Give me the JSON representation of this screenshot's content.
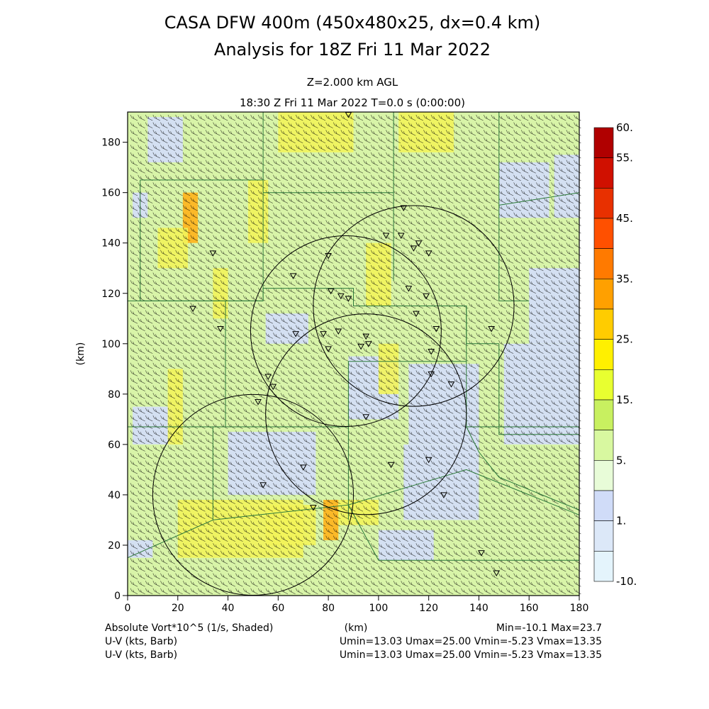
{
  "title": {
    "line1": "CASA DFW 400m (450x480x25, dx=0.4 km)",
    "line2": "Analysis for 18Z Fri 11 Mar 2022"
  },
  "subtitle": {
    "level": "Z=2.000 km AGL",
    "time": "18:30 Z Fri 11 Mar 2022    T=0.0 s (0:00:00)"
  },
  "axes": {
    "x_label": "(km)",
    "y_label": "(km)",
    "x_range": [
      0,
      180
    ],
    "y_range": [
      0,
      192
    ],
    "x_ticks": [
      "0",
      "20",
      "40",
      "60",
      "80",
      "100",
      "120",
      "140",
      "160",
      "180"
    ],
    "y_ticks": [
      "0",
      "20",
      "40",
      "60",
      "80",
      "100",
      "120",
      "140",
      "160",
      "180"
    ]
  },
  "colorbar": {
    "labels": [
      "60.",
      "55.",
      "45.",
      "35.",
      "25.",
      "15.",
      "5.",
      "1.",
      "-10."
    ],
    "colors": [
      "#b00000",
      "#d01000",
      "#e83000",
      "#ff5000",
      "#ff7a00",
      "#ffa000",
      "#ffcc00",
      "#fff000",
      "#e8ff30",
      "#c8f060",
      "#d8f8a0",
      "#e8fcd8",
      "#d0dcf8",
      "#dce8f8",
      "#e4f4fc"
    ]
  },
  "footer": {
    "field": "Absolute Vort*10^5 (1/s, Shaded)",
    "units": "(km)",
    "minmax": "Min=-10.1 Max=23.7",
    "wind1": "U-V (kts, Barb)",
    "wind1_range": "Umin=13.03 Umax=25.00 Vmin=-5.23 Vmax=13.35",
    "wind2": "U-V (kts, Barb)",
    "wind2_range": "Umin=13.03 Umax=25.00 Vmin=-5.23 Vmax=13.35"
  },
  "map": {
    "radars": [
      {
        "x": 87,
        "y": 105,
        "r_km": 38
      },
      {
        "x": 114,
        "y": 115,
        "r_km": 40
      },
      {
        "x": 95,
        "y": 72,
        "r_km": 40
      },
      {
        "x": 50,
        "y": 40,
        "r_km": 40
      }
    ],
    "stations": [
      [
        88,
        191
      ],
      [
        110,
        154
      ],
      [
        103,
        143
      ],
      [
        80,
        135
      ],
      [
        109,
        143
      ],
      [
        116,
        140
      ],
      [
        114,
        138
      ],
      [
        120,
        136
      ],
      [
        66,
        127
      ],
      [
        34,
        136
      ],
      [
        81,
        121
      ],
      [
        85,
        119
      ],
      [
        88,
        118
      ],
      [
        112,
        122
      ],
      [
        119,
        119
      ],
      [
        115,
        112
      ],
      [
        26,
        114
      ],
      [
        37,
        106
      ],
      [
        67,
        104
      ],
      [
        78,
        104
      ],
      [
        84,
        105
      ],
      [
        95,
        103
      ],
      [
        93,
        99
      ],
      [
        96,
        100
      ],
      [
        80,
        98
      ],
      [
        123,
        106
      ],
      [
        145,
        106
      ],
      [
        121,
        97
      ],
      [
        121,
        88
      ],
      [
        129,
        84
      ],
      [
        56,
        87
      ],
      [
        58,
        83
      ],
      [
        52,
        77
      ],
      [
        95,
        71
      ],
      [
        70,
        51
      ],
      [
        105,
        52
      ],
      [
        120,
        54
      ],
      [
        54,
        44
      ],
      [
        126,
        40
      ],
      [
        74,
        35
      ],
      [
        141,
        17
      ],
      [
        147,
        9
      ]
    ],
    "vort_patches": [
      {
        "x0": 2,
        "y0": 150,
        "x1": 8,
        "y1": 160,
        "v": 1
      },
      {
        "x0": 22,
        "y0": 140,
        "x1": 28,
        "y1": 160,
        "v": 25
      },
      {
        "x0": 12,
        "y0": 130,
        "x1": 24,
        "y1": 146,
        "v": 15
      },
      {
        "x0": 34,
        "y0": 110,
        "x1": 40,
        "y1": 130,
        "v": 15
      },
      {
        "x0": 48,
        "y0": 140,
        "x1": 56,
        "y1": 165,
        "v": 15
      },
      {
        "x0": 8,
        "y0": 100,
        "x1": 30,
        "y1": 118,
        "v": 5
      },
      {
        "x0": 55,
        "y0": 100,
        "x1": 72,
        "y1": 112,
        "v": 1
      },
      {
        "x0": 60,
        "y0": 70,
        "x1": 80,
        "y1": 95,
        "v": 5
      },
      {
        "x0": 88,
        "y0": 70,
        "x1": 108,
        "y1": 95,
        "v": 1
      },
      {
        "x0": 112,
        "y0": 60,
        "x1": 140,
        "y1": 92,
        "v": 1
      },
      {
        "x0": 150,
        "y0": 60,
        "x1": 180,
        "y1": 100,
        "v": 1
      },
      {
        "x0": 160,
        "y0": 100,
        "x1": 180,
        "y1": 130,
        "v": 1
      },
      {
        "x0": 148,
        "y0": 150,
        "x1": 168,
        "y1": 172,
        "v": 1
      },
      {
        "x0": 170,
        "y0": 150,
        "x1": 180,
        "y1": 175,
        "v": 1
      },
      {
        "x0": 110,
        "y0": 30,
        "x1": 140,
        "y1": 60,
        "v": 1
      },
      {
        "x0": 40,
        "y0": 40,
        "x1": 75,
        "y1": 65,
        "v": 1
      },
      {
        "x0": 2,
        "y0": 60,
        "x1": 18,
        "y1": 75,
        "v": 1
      },
      {
        "x0": 16,
        "y0": 60,
        "x1": 22,
        "y1": 90,
        "v": 15
      },
      {
        "x0": 20,
        "y0": 15,
        "x1": 70,
        "y1": 38,
        "v": 15
      },
      {
        "x0": 55,
        "y0": 20,
        "x1": 75,
        "y1": 36,
        "v": 15
      },
      {
        "x0": 78,
        "y0": 22,
        "x1": 84,
        "y1": 38,
        "v": 25
      },
      {
        "x0": 84,
        "y0": 28,
        "x1": 100,
        "y1": 38,
        "v": 15
      },
      {
        "x0": 95,
        "y0": 115,
        "x1": 105,
        "y1": 140,
        "v": 15
      },
      {
        "x0": 100,
        "y0": 80,
        "x1": 108,
        "y1": 100,
        "v": 15
      },
      {
        "x0": 140,
        "y0": 12,
        "x1": 180,
        "y1": 38,
        "v": 5
      },
      {
        "x0": 100,
        "y0": 14,
        "x1": 122,
        "y1": 26,
        "v": 1
      },
      {
        "x0": 0,
        "y0": 15,
        "x1": 10,
        "y1": 22,
        "v": 1
      },
      {
        "x0": 108,
        "y0": 176,
        "x1": 130,
        "y1": 192,
        "v": 15
      },
      {
        "x0": 60,
        "y0": 176,
        "x1": 90,
        "y1": 192,
        "v": 15
      },
      {
        "x0": 8,
        "y0": 172,
        "x1": 22,
        "y1": 190,
        "v": 1
      }
    ],
    "counties": [
      [
        [
          5,
          165
        ],
        [
          54,
          165
        ],
        [
          54,
          117
        ],
        [
          5,
          117
        ],
        [
          5,
          165
        ]
      ],
      [
        [
          54,
          192
        ],
        [
          54,
          165
        ]
      ],
      [
        [
          54,
          160
        ],
        [
          106,
          160
        ],
        [
          106,
          125
        ]
      ],
      [
        [
          106,
          160
        ],
        [
          106,
          192
        ]
      ],
      [
        [
          148,
          192
        ],
        [
          148,
          155
        ],
        [
          180,
          160
        ]
      ],
      [
        [
          148,
          155
        ],
        [
          148,
          117
        ],
        [
          160,
          117
        ]
      ],
      [
        [
          0,
          117
        ],
        [
          54,
          117
        ],
        [
          54,
          122
        ],
        [
          90,
          122
        ],
        [
          90,
          115
        ],
        [
          135,
          115
        ],
        [
          135,
          100
        ],
        [
          148,
          100
        ]
      ],
      [
        [
          39,
          117
        ],
        [
          39,
          67
        ],
        [
          0,
          67
        ]
      ],
      [
        [
          39,
          67
        ],
        [
          88,
          67
        ],
        [
          88,
          93
        ],
        [
          135,
          93
        ],
        [
          135,
          115
        ]
      ],
      [
        [
          135,
          93
        ],
        [
          135,
          67
        ],
        [
          180,
          67
        ]
      ],
      [
        [
          148,
          100
        ],
        [
          148,
          64
        ],
        [
          180,
          64
        ]
      ],
      [
        [
          88,
          67
        ],
        [
          88,
          30
        ]
      ],
      [
        [
          34,
          67
        ],
        [
          34,
          30
        ],
        [
          0,
          15
        ]
      ],
      [
        [
          34,
          30
        ],
        [
          88,
          36
        ],
        [
          100,
          14
        ],
        [
          180,
          14
        ]
      ],
      [
        [
          88,
          36
        ],
        [
          135,
          50
        ],
        [
          160,
          40
        ],
        [
          180,
          32
        ]
      ],
      [
        [
          135,
          67
        ],
        [
          140,
          57
        ],
        [
          148,
          47
        ],
        [
          170,
          38
        ],
        [
          180,
          34
        ]
      ],
      [
        [
          180,
          100
        ],
        [
          180,
          67
        ]
      ]
    ]
  }
}
